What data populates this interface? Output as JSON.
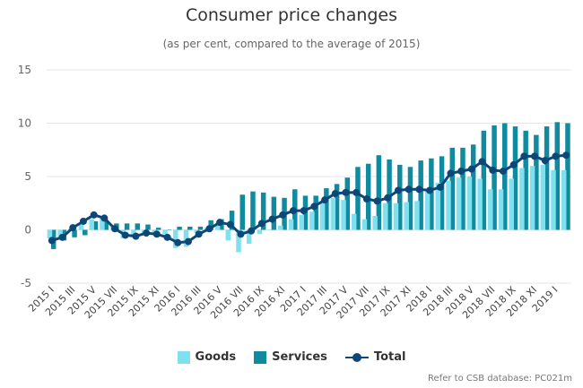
{
  "chart_data": {
    "type": "bar",
    "title": "Consumer price changes",
    "subtitle": "(as per cent, compared to the average of 2015)",
    "xlabel": "",
    "ylabel": "",
    "ylim": [
      -5,
      15
    ],
    "yticks": [
      -5,
      0,
      5,
      10,
      15
    ],
    "grid": true,
    "legend_position": "bottom-center",
    "credits": "Refer to CSB database: PC021m",
    "categories": [
      "2015 I",
      "2015 II",
      "2015 III",
      "2015 IV",
      "2015 V",
      "2015 VI",
      "2015 VII",
      "2015 VIII",
      "2015 IX",
      "2015 X",
      "2015 XI",
      "2015 XII",
      "2016 I",
      "2016 II",
      "2016 III",
      "2016 IV",
      "2016 V",
      "2016 VI",
      "2016 VII",
      "2016 VIII",
      "2016 IX",
      "2016 X",
      "2016 XI",
      "2016 XII",
      "2017 I",
      "2017 II",
      "2017 III",
      "2017 IV",
      "2017 V",
      "2017 VI",
      "2017 VII",
      "2017 VIII",
      "2017 IX",
      "2017 X",
      "2017 XI",
      "2017 XII",
      "2018 I",
      "2018 II",
      "2018 III",
      "2018 IV",
      "2018 V",
      "2018 VI",
      "2018 VII",
      "2018 VIII",
      "2018 IX",
      "2018 X",
      "2018 XI",
      "2018 XII",
      "2019 I",
      "2019 II"
    ],
    "x_tick_labels": [
      "2015 I",
      "2015 III",
      "2015 V",
      "2015 VII",
      "2015 IX",
      "2015 XI",
      "2016 I",
      "2016 III",
      "2016 V",
      "2016 VII",
      "2016 IX",
      "2016 XI",
      "2017 I",
      "2017 III",
      "2017 V",
      "2017 VII",
      "2017 IX",
      "2017 XI",
      "2018 I",
      "2018 III",
      "2018 V",
      "2018 VII",
      "2018 IX",
      "2018 XI",
      "2019 I"
    ],
    "series": [
      {
        "name": "Goods",
        "type": "column",
        "color": "#7fe0f0",
        "values": [
          -0.8,
          -0.7,
          0.1,
          0.5,
          1.0,
          1.1,
          0.3,
          -0.8,
          -0.7,
          -0.4,
          -0.5,
          -0.4,
          -1.7,
          -1.6,
          -0.3,
          0.2,
          0.5,
          -1.0,
          -2.1,
          -1.3,
          -0.4,
          0.0,
          0.4,
          1.0,
          1.4,
          1.7,
          2.7,
          3.0,
          2.8,
          1.5,
          1.0,
          1.3,
          2.5,
          2.5,
          2.6,
          2.7,
          3.6,
          4.4,
          4.6,
          4.9,
          5.0,
          4.8,
          3.8,
          3.8,
          4.8,
          5.8,
          6.0,
          6.1,
          5.6,
          5.6
        ]
      },
      {
        "name": "Services",
        "type": "column",
        "color": "#0f8a9e",
        "values": [
          -1.8,
          -1.0,
          -0.7,
          -0.5,
          0.8,
          0.9,
          0.6,
          0.6,
          0.6,
          0.5,
          0.2,
          0.0,
          0.3,
          0.3,
          0.3,
          0.9,
          1.0,
          1.8,
          3.3,
          3.6,
          3.5,
          3.1,
          3.0,
          3.8,
          3.2,
          3.2,
          3.9,
          4.3,
          4.9,
          5.9,
          6.2,
          7.0,
          6.6,
          6.1,
          5.9,
          6.5,
          6.7,
          6.9,
          7.7,
          7.7,
          8.0,
          9.3,
          9.8,
          10.0,
          9.7,
          9.3,
          8.9,
          9.7,
          10.1,
          10.0
        ]
      },
      {
        "name": "Total",
        "type": "line",
        "color": "#0d4777",
        "values": [
          -1.0,
          -0.7,
          0.2,
          0.8,
          1.4,
          1.1,
          0.1,
          -0.5,
          -0.6,
          -0.3,
          -0.4,
          -0.7,
          -1.2,
          -1.1,
          -0.4,
          0.1,
          0.7,
          0.5,
          -0.4,
          -0.1,
          0.6,
          1.0,
          1.4,
          1.8,
          1.8,
          2.2,
          2.8,
          3.4,
          3.5,
          3.5,
          2.9,
          2.7,
          3.0,
          3.7,
          3.8,
          3.8,
          3.7,
          4.0,
          5.3,
          5.5,
          5.7,
          6.4,
          5.6,
          5.5,
          6.1,
          6.9,
          6.9,
          6.5,
          6.9,
          7.0
        ]
      }
    ]
  }
}
